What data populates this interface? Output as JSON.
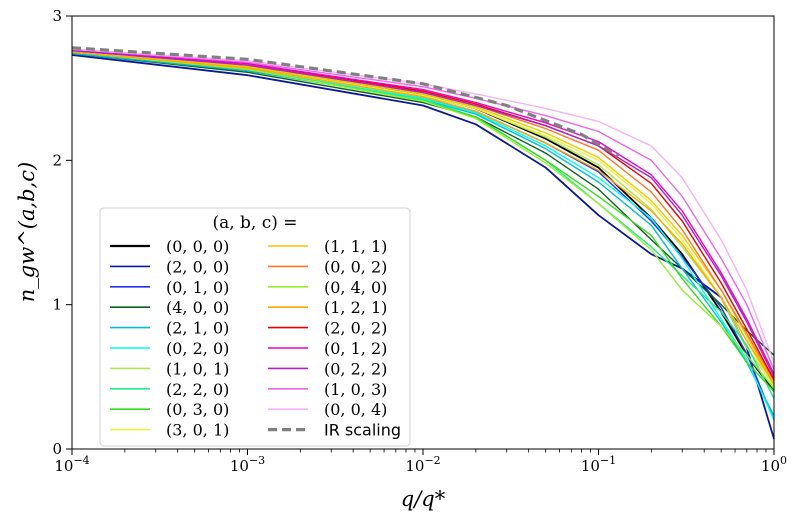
{
  "chart_data": {
    "type": "line",
    "xscale": "log",
    "xlim": [
      0.0001,
      1
    ],
    "ylim": [
      0,
      3
    ],
    "xlabel": "q/q*",
    "ylabel": "n_gw^(a,b,c)",
    "legend_title": "(a, b, c) =",
    "x_ticks": [
      {
        "value": 0.0001,
        "base": "10",
        "exp": "−4"
      },
      {
        "value": 0.001,
        "base": "10",
        "exp": "−3"
      },
      {
        "value": 0.01,
        "base": "10",
        "exp": "−2"
      },
      {
        "value": 0.1,
        "base": "10",
        "exp": "−1"
      },
      {
        "value": 1,
        "base": "10",
        "exp": "0"
      }
    ],
    "y_ticks": [
      {
        "value": 0,
        "label": "0"
      },
      {
        "value": 1,
        "label": "1"
      },
      {
        "value": 2,
        "label": "2"
      },
      {
        "value": 3,
        "label": "3"
      }
    ],
    "x": [
      0.0001,
      0.001,
      0.01,
      0.02,
      0.05,
      0.1,
      0.2,
      0.3,
      0.5,
      0.7,
      1.0
    ],
    "series": [
      {
        "name": "(0, 0, 0)",
        "color": "#000000",
        "values": [
          2.74,
          2.65,
          2.45,
          2.36,
          2.15,
          1.95,
          1.6,
          1.35,
          0.95,
          0.65,
          0.4
        ]
      },
      {
        "name": "(2, 0, 0)",
        "color": "#0a1a99",
        "values": [
          2.73,
          2.59,
          2.38,
          2.25,
          1.95,
          1.62,
          1.35,
          1.25,
          1.05,
          0.7,
          0.07
        ]
      },
      {
        "name": "(0, 1, 0)",
        "color": "#2233ee",
        "values": [
          2.74,
          2.62,
          2.43,
          2.34,
          2.12,
          1.92,
          1.58,
          1.33,
          0.98,
          0.66,
          0.2
        ]
      },
      {
        "name": "(4, 0, 0)",
        "color": "#106020",
        "values": [
          2.74,
          2.61,
          2.4,
          2.3,
          2.05,
          1.8,
          1.45,
          1.25,
          1.0,
          0.82,
          0.65
        ]
      },
      {
        "name": "(2, 1, 0)",
        "color": "#00bbdd",
        "values": [
          2.74,
          2.62,
          2.42,
          2.32,
          2.08,
          1.85,
          1.55,
          1.25,
          0.88,
          0.6,
          0.23
        ]
      },
      {
        "name": "(0, 2, 0)",
        "color": "#00ffee",
        "values": [
          2.75,
          2.63,
          2.43,
          2.33,
          2.1,
          1.88,
          1.6,
          1.32,
          0.9,
          0.62,
          0.2
        ]
      },
      {
        "name": "(1, 0, 1)",
        "color": "#a8e84a",
        "values": [
          2.75,
          2.64,
          2.45,
          2.36,
          2.16,
          1.97,
          1.66,
          1.4,
          1.05,
          0.7,
          0.44
        ]
      },
      {
        "name": "(2, 2, 0)",
        "color": "#22ee88",
        "values": [
          2.75,
          2.63,
          2.42,
          2.3,
          2.0,
          1.7,
          1.4,
          1.2,
          0.95,
          0.72,
          0.35
        ]
      },
      {
        "name": "(0, 3, 0)",
        "color": "#33dd22",
        "values": [
          2.75,
          2.63,
          2.41,
          2.3,
          2.0,
          1.75,
          1.48,
          1.18,
          0.85,
          0.6,
          0.4
        ]
      },
      {
        "name": "(3, 0, 1)",
        "color": "#eeee44",
        "values": [
          2.75,
          2.64,
          2.45,
          2.36,
          2.17,
          2.0,
          1.7,
          1.45,
          1.05,
          0.75,
          0.42
        ]
      },
      {
        "name": "(1, 1, 1)",
        "color": "#eecc00",
        "values": [
          2.75,
          2.65,
          2.46,
          2.37,
          2.19,
          2.02,
          1.72,
          1.48,
          1.1,
          0.78,
          0.45
        ]
      },
      {
        "name": "(0, 0, 2)",
        "color": "#ff7722",
        "values": [
          2.76,
          2.66,
          2.47,
          2.38,
          2.22,
          2.07,
          1.78,
          1.52,
          1.1,
          0.8,
          0.47
        ]
      },
      {
        "name": "(0, 4, 0)",
        "color": "#99ee33",
        "values": [
          2.75,
          2.63,
          2.41,
          2.29,
          1.98,
          1.7,
          1.38,
          1.1,
          0.85,
          0.65,
          0.42
        ]
      },
      {
        "name": "(1, 2, 1)",
        "color": "#ffaa00",
        "values": [
          2.75,
          2.64,
          2.44,
          2.34,
          2.12,
          1.93,
          1.65,
          1.42,
          1.05,
          0.75,
          0.45
        ]
      },
      {
        "name": "(2, 0, 2)",
        "color": "#ee0000",
        "values": [
          2.76,
          2.67,
          2.48,
          2.39,
          2.24,
          2.1,
          1.84,
          1.58,
          1.15,
          0.83,
          0.48
        ]
      },
      {
        "name": "(0, 1, 2)",
        "color": "#ee00cc",
        "values": [
          2.76,
          2.67,
          2.49,
          2.4,
          2.26,
          2.13,
          1.9,
          1.65,
          1.22,
          0.9,
          0.52
        ]
      },
      {
        "name": "(0, 2, 2)",
        "color": "#aa22cc",
        "values": [
          2.76,
          2.66,
          2.47,
          2.38,
          2.24,
          2.1,
          1.88,
          1.62,
          1.2,
          0.88,
          0.5
        ]
      },
      {
        "name": "(1, 0, 3)",
        "color": "#ee66ee",
        "values": [
          2.77,
          2.68,
          2.51,
          2.43,
          2.31,
          2.2,
          2.0,
          1.75,
          1.32,
          1.0,
          0.55
        ]
      },
      {
        "name": "(0, 0, 4)",
        "color": "#f5b3f0",
        "values": [
          2.77,
          2.69,
          2.53,
          2.46,
          2.36,
          2.27,
          2.1,
          1.88,
          1.45,
          1.1,
          0.6
        ]
      }
    ],
    "ir_scaling": {
      "name": "IR scaling",
      "color": "#808080",
      "x": [
        0.0001,
        0.001,
        0.01,
        0.03,
        0.08,
        0.13
      ],
      "values": [
        2.78,
        2.7,
        2.53,
        2.38,
        2.18,
        2.03
      ]
    }
  }
}
